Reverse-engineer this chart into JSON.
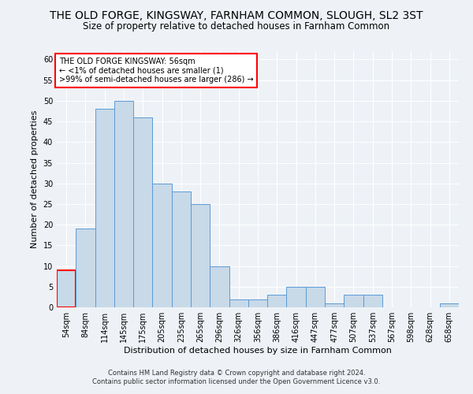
{
  "title": "THE OLD FORGE, KINGSWAY, FARNHAM COMMON, SLOUGH, SL2 3ST",
  "subtitle": "Size of property relative to detached houses in Farnham Common",
  "xlabel": "Distribution of detached houses by size in Farnham Common",
  "ylabel": "Number of detached properties",
  "categories": [
    "54sqm",
    "84sqm",
    "114sqm",
    "145sqm",
    "175sqm",
    "205sqm",
    "235sqm",
    "265sqm",
    "296sqm",
    "326sqm",
    "356sqm",
    "386sqm",
    "416sqm",
    "447sqm",
    "477sqm",
    "507sqm",
    "537sqm",
    "567sqm",
    "598sqm",
    "628sqm",
    "658sqm"
  ],
  "values": [
    9,
    19,
    48,
    50,
    46,
    30,
    28,
    25,
    10,
    2,
    2,
    3,
    5,
    5,
    1,
    3,
    3,
    0,
    0,
    0,
    1
  ],
  "bar_color": "#c8d9e8",
  "bar_edge_color": "#5b9bd5",
  "highlight_bar_index": 0,
  "highlight_bar_edge_color": "#ff0000",
  "ylim": [
    0,
    62
  ],
  "yticks": [
    0,
    5,
    10,
    15,
    20,
    25,
    30,
    35,
    40,
    45,
    50,
    55,
    60
  ],
  "annotation_text": "THE OLD FORGE KINGSWAY: 56sqm\n← <1% of detached houses are smaller (1)\n>99% of semi-detached houses are larger (286) →",
  "annotation_box_color": "#ffffff",
  "annotation_box_edge_color": "#ff0000",
  "footer_line1": "Contains HM Land Registry data © Crown copyright and database right 2024.",
  "footer_line2": "Contains public sector information licensed under the Open Government Licence v3.0.",
  "background_color": "#eef2f7",
  "grid_color": "#ffffff",
  "title_fontsize": 10,
  "subtitle_fontsize": 8.5,
  "axis_label_fontsize": 8,
  "tick_fontsize": 7,
  "annotation_fontsize": 7,
  "footer_fontsize": 6
}
